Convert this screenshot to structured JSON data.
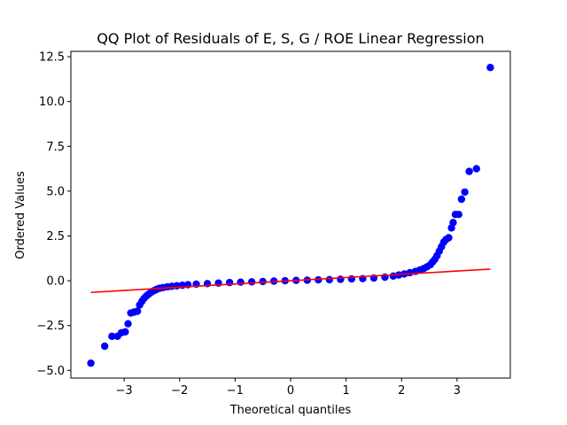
{
  "chart_data": {
    "type": "scatter",
    "title": "QQ Plot of Residuals of E, S, G / ROE Linear Regression",
    "xlabel": "Theoretical quantiles",
    "ylabel": "Ordered Values",
    "xlim": [
      -3.96,
      3.96
    ],
    "ylim": [
      -5.43,
      12.8
    ],
    "x_ticks": [
      -3,
      -2,
      -1,
      0,
      1,
      2,
      3
    ],
    "x_tick_labels": [
      "−3",
      "−2",
      "−1",
      "0",
      "1",
      "2",
      "3"
    ],
    "y_ticks": [
      -5.0,
      -2.5,
      0.0,
      2.5,
      5.0,
      7.5,
      10.0,
      12.5
    ],
    "y_tick_labels": [
      "−5.0",
      "−2.5",
      "0.0",
      "2.5",
      "5.0",
      "7.5",
      "10.0",
      "12.5"
    ],
    "grid": false,
    "legend": "none",
    "marker_color": "#0000ff",
    "line_color": "#ff0000",
    "series": [
      {
        "kind": "points",
        "points": [
          [
            -3.6,
            -4.6
          ],
          [
            -3.35,
            -3.65
          ],
          [
            -3.22,
            -3.1
          ],
          [
            -3.12,
            -3.1
          ],
          [
            -3.05,
            -2.9
          ],
          [
            -2.98,
            -2.85
          ],
          [
            -2.93,
            -2.4
          ],
          [
            -2.88,
            -1.8
          ],
          [
            -2.82,
            -1.75
          ],
          [
            -2.76,
            -1.7
          ],
          [
            -2.72,
            -1.35
          ],
          [
            -2.68,
            -1.15
          ],
          [
            -2.64,
            -0.98
          ],
          [
            -2.6,
            -0.85
          ],
          [
            -2.56,
            -0.75
          ],
          [
            -2.52,
            -0.66
          ],
          [
            -2.48,
            -0.58
          ],
          [
            -2.44,
            -0.52
          ],
          [
            -2.4,
            -0.46
          ],
          [
            -2.36,
            -0.42
          ],
          [
            -2.3,
            -0.38
          ],
          [
            -2.22,
            -0.34
          ],
          [
            -2.14,
            -0.31
          ],
          [
            -2.05,
            -0.28
          ],
          [
            -1.95,
            -0.25
          ],
          [
            -1.85,
            -0.22
          ],
          [
            -1.7,
            -0.19
          ],
          [
            -1.5,
            -0.16
          ],
          [
            -1.3,
            -0.13
          ],
          [
            -1.1,
            -0.1
          ],
          [
            -0.9,
            -0.08
          ],
          [
            -0.7,
            -0.06
          ],
          [
            -0.5,
            -0.04
          ],
          [
            -0.3,
            -0.02
          ],
          [
            -0.1,
            0.0
          ],
          [
            0.1,
            0.02
          ],
          [
            0.3,
            0.03
          ],
          [
            0.5,
            0.05
          ],
          [
            0.7,
            0.06
          ],
          [
            0.9,
            0.08
          ],
          [
            1.1,
            0.1
          ],
          [
            1.3,
            0.12
          ],
          [
            1.5,
            0.15
          ],
          [
            1.7,
            0.2
          ],
          [
            1.85,
            0.26
          ],
          [
            1.95,
            0.32
          ],
          [
            2.05,
            0.38
          ],
          [
            2.15,
            0.45
          ],
          [
            2.25,
            0.52
          ],
          [
            2.33,
            0.6
          ],
          [
            2.4,
            0.68
          ],
          [
            2.46,
            0.78
          ],
          [
            2.52,
            0.9
          ],
          [
            2.56,
            1.05
          ],
          [
            2.6,
            1.2
          ],
          [
            2.64,
            1.4
          ],
          [
            2.68,
            1.65
          ],
          [
            2.72,
            1.9
          ],
          [
            2.76,
            2.15
          ],
          [
            2.8,
            2.3
          ],
          [
            2.85,
            2.4
          ],
          [
            2.9,
            2.95
          ],
          [
            2.93,
            3.25
          ],
          [
            2.97,
            3.7
          ],
          [
            3.03,
            3.7
          ],
          [
            3.08,
            4.55
          ],
          [
            3.14,
            4.95
          ],
          [
            3.22,
            6.1
          ],
          [
            3.35,
            6.25
          ],
          [
            3.6,
            11.9
          ]
        ]
      },
      {
        "kind": "fit-line",
        "points": [
          [
            -3.6,
            -0.65
          ],
          [
            3.6,
            0.65
          ]
        ]
      }
    ]
  }
}
